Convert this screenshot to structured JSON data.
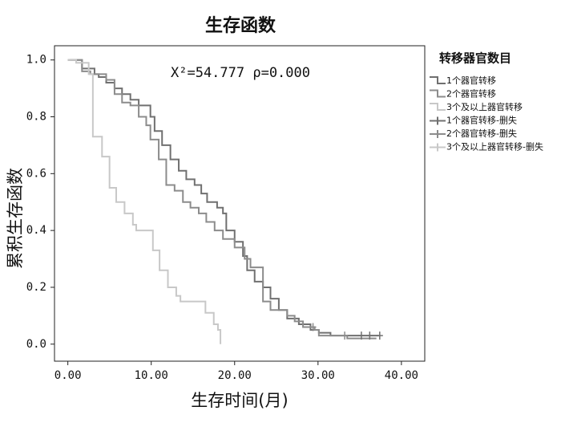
{
  "chart_data": {
    "type": "step",
    "title": "生存函数",
    "x_label": "生存时间(月)",
    "y_label": "累积生存函数",
    "annotation": "X²=54.777  ρ=0.000",
    "legend_title": "转移器官数目",
    "xlim": [
      -1.6,
      42.8
    ],
    "ylim": [
      -0.06,
      1.05
    ],
    "xticks": [
      {
        "value": 0,
        "label": "0.00"
      },
      {
        "value": 10,
        "label": "10.00"
      },
      {
        "value": 20,
        "label": "20.00"
      },
      {
        "value": 30,
        "label": "30.00"
      },
      {
        "value": 40,
        "label": "40.00"
      }
    ],
    "yticks": [
      {
        "value": 0,
        "label": "0.0"
      },
      0.2,
      0.4,
      0.6,
      0.8,
      {
        "value": 1,
        "label": "1.0"
      }
    ],
    "series": [
      {
        "name": "1个器官转移",
        "color": "#707070",
        "kind": "curve",
        "x": [
          0,
          1.7,
          3.2,
          3.7,
          4.6,
          5.6,
          6.5,
          7.5,
          8.5,
          9.9,
          10.4,
          11.3,
          12.3,
          13.3,
          14.2,
          15.2,
          16.0,
          16.7,
          17.9,
          18.6,
          19.0,
          20.0,
          21.0,
          21.5,
          22.4,
          23.4,
          24.3,
          25.3,
          26.3,
          27.7,
          29.1,
          30.1,
          31.5,
          37.3
        ],
        "values": [
          1.0,
          0.97,
          0.95,
          0.94,
          0.92,
          0.9,
          0.88,
          0.86,
          0.84,
          0.8,
          0.75,
          0.7,
          0.65,
          0.61,
          0.58,
          0.56,
          0.53,
          0.5,
          0.48,
          0.46,
          0.4,
          0.36,
          0.31,
          0.26,
          0.22,
          0.2,
          0.16,
          0.12,
          0.09,
          0.07,
          0.05,
          0.04,
          0.03,
          0.03
        ]
      },
      {
        "name": "2个器官转移",
        "color": "#8c8c8c",
        "kind": "curve",
        "x": [
          0.3,
          1.7,
          2.7,
          4.6,
          5.6,
          6.5,
          7.5,
          8.5,
          9.4,
          9.9,
          10.9,
          11.8,
          12.8,
          13.8,
          14.7,
          15.7,
          16.6,
          17.6,
          18.6,
          20.0,
          21.2,
          21.9,
          23.4,
          24.3,
          26.3,
          27.2,
          28.2,
          29.6,
          30.1,
          33.5,
          37.0
        ],
        "values": [
          1.0,
          0.96,
          0.95,
          0.93,
          0.88,
          0.85,
          0.84,
          0.8,
          0.77,
          0.72,
          0.65,
          0.56,
          0.54,
          0.5,
          0.48,
          0.46,
          0.43,
          0.4,
          0.37,
          0.34,
          0.3,
          0.27,
          0.15,
          0.12,
          0.1,
          0.08,
          0.06,
          0.05,
          0.03,
          0.02,
          0.02
        ]
      },
      {
        "name": "3个及以上器官转移",
        "color": "#c8c8c8",
        "kind": "curve",
        "x": [
          0,
          1.0,
          2.5,
          3.0,
          4.1,
          5.0,
          5.8,
          6.8,
          7.8,
          8.2,
          10.2,
          11.0,
          12.0,
          13.0,
          13.5,
          16.5,
          17.5,
          18.0,
          18.3
        ],
        "values": [
          1.0,
          0.99,
          0.95,
          0.73,
          0.66,
          0.55,
          0.5,
          0.46,
          0.42,
          0.4,
          0.33,
          0.26,
          0.2,
          0.17,
          0.15,
          0.11,
          0.07,
          0.05,
          0.0
        ]
      },
      {
        "name": "1个器官转移-删失",
        "color": "#707070",
        "kind": "censor",
        "x": [
          35.2,
          36.2,
          37.4
        ],
        "values": [
          0.03,
          0.03,
          0.03
        ]
      },
      {
        "name": "2个器官转移-删失",
        "color": "#8c8c8c",
        "kind": "censor",
        "x": [
          29.4,
          33.2
        ],
        "values": [
          0.06,
          0.03
        ]
      },
      {
        "name": "3个及以上器官转移-删失",
        "color": "#c8c8c8",
        "kind": "censor",
        "x": [],
        "values": []
      }
    ]
  }
}
